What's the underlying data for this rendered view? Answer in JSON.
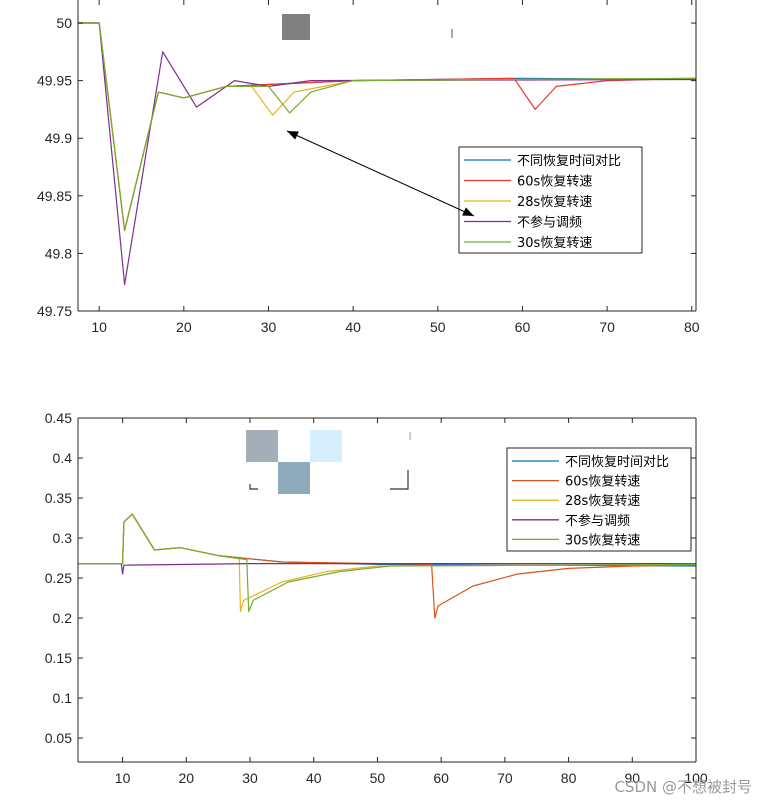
{
  "watermark": "CSDN @不想被封号",
  "chart_data": [
    {
      "type": "line",
      "title": "",
      "xlabel": "",
      "ylabel": "",
      "xlim": [
        7.5,
        80.5
      ],
      "ylim": [
        49.75,
        50.02
      ],
      "xticks": [
        "10",
        "20",
        "30",
        "40",
        "50",
        "60",
        "70",
        "80"
      ],
      "yticks": [
        "49.75",
        "49.8",
        "49.85",
        "49.9",
        "49.95",
        "50"
      ],
      "grid": false,
      "legend_position": "center-right",
      "annotation": "arrow pointing from legend entry 不参与调频 toward curve near x=32",
      "series": [
        {
          "name": "不同恢复时间对比",
          "color": "#0072BD",
          "points": [
            [
              7.5,
              50.0
            ],
            [
              10,
              50.0
            ],
            [
              13,
              49.82
            ],
            [
              17,
              49.94
            ],
            [
              20,
              49.935
            ],
            [
              25,
              49.945
            ],
            [
              40,
              49.95
            ],
            [
              60,
              49.952
            ],
            [
              80.5,
              49.951
            ]
          ]
        },
        {
          "name": "60s恢复转速",
          "color": "#E8392B",
          "points": [
            [
              7.5,
              50.0
            ],
            [
              10,
              50.0
            ],
            [
              13,
              49.82
            ],
            [
              17,
              49.94
            ],
            [
              20,
              49.935
            ],
            [
              25,
              49.945
            ],
            [
              40,
              49.95
            ],
            [
              59,
              49.952
            ],
            [
              61.5,
              49.925
            ],
            [
              64,
              49.945
            ],
            [
              70,
              49.95
            ],
            [
              80.5,
              49.952
            ]
          ]
        },
        {
          "name": "28s恢复转速",
          "color": "#EDB120",
          "points": [
            [
              7.5,
              50.0
            ],
            [
              10,
              50.0
            ],
            [
              13,
              49.82
            ],
            [
              17,
              49.94
            ],
            [
              20,
              49.935
            ],
            [
              25,
              49.945
            ],
            [
              28,
              49.945
            ],
            [
              30.5,
              49.92
            ],
            [
              33,
              49.94
            ],
            [
              40,
              49.95
            ],
            [
              80.5,
              49.952
            ]
          ]
        },
        {
          "name": "不参与调频",
          "color": "#7E2F8E",
          "points": [
            [
              7.5,
              50.0
            ],
            [
              10,
              50.0
            ],
            [
              13,
              49.773
            ],
            [
              17.5,
              49.975
            ],
            [
              21.5,
              49.927
            ],
            [
              26,
              49.95
            ],
            [
              30,
              49.945
            ],
            [
              35,
              49.95
            ],
            [
              80.5,
              49.951
            ]
          ]
        },
        {
          "name": "30s恢复转速",
          "color": "#77AC30",
          "points": [
            [
              7.5,
              50.0
            ],
            [
              10,
              50.0
            ],
            [
              13,
              49.82
            ],
            [
              17,
              49.94
            ],
            [
              20,
              49.935
            ],
            [
              25,
              49.945
            ],
            [
              30,
              49.945
            ],
            [
              32.5,
              49.922
            ],
            [
              35,
              49.94
            ],
            [
              40,
              49.95
            ],
            [
              80.5,
              49.952
            ]
          ]
        }
      ]
    },
    {
      "type": "line",
      "title": "",
      "xlabel": "",
      "ylabel": "",
      "xlim": [
        3,
        100
      ],
      "ylim": [
        0.02,
        0.45
      ],
      "xticks": [
        "10",
        "20",
        "30",
        "40",
        "50",
        "60",
        "70",
        "80",
        "90",
        "100"
      ],
      "yticks": [
        "0.05",
        "0.1",
        "0.15",
        "0.2",
        "0.25",
        "0.3",
        "0.35",
        "0.4",
        "0.45"
      ],
      "grid": false,
      "legend_position": "top-right",
      "series": [
        {
          "name": "不同恢复时间对比",
          "color": "#0072BD",
          "points": [
            [
              3,
              0.268
            ],
            [
              10,
              0.268
            ],
            [
              10.2,
              0.32
            ],
            [
              11.5,
              0.33
            ],
            [
              15,
              0.285
            ],
            [
              19,
              0.288
            ],
            [
              25,
              0.278
            ],
            [
              35,
              0.27
            ],
            [
              50,
              0.267
            ],
            [
              100,
              0.265
            ]
          ]
        },
        {
          "name": "60s恢复转速",
          "color": "#D95319",
          "points": [
            [
              3,
              0.268
            ],
            [
              10,
              0.268
            ],
            [
              10.2,
              0.32
            ],
            [
              11.5,
              0.33
            ],
            [
              15,
              0.285
            ],
            [
              19,
              0.288
            ],
            [
              25,
              0.278
            ],
            [
              35,
              0.27
            ],
            [
              58.5,
              0.267
            ],
            [
              59,
              0.2
            ],
            [
              59.5,
              0.215
            ],
            [
              65,
              0.24
            ],
            [
              72,
              0.255
            ],
            [
              80,
              0.262
            ],
            [
              90,
              0.265
            ],
            [
              100,
              0.266
            ]
          ]
        },
        {
          "name": "28s恢复转速",
          "color": "#EDB120",
          "points": [
            [
              3,
              0.268
            ],
            [
              10,
              0.268
            ],
            [
              10.2,
              0.32
            ],
            [
              11.5,
              0.33
            ],
            [
              15,
              0.285
            ],
            [
              19,
              0.288
            ],
            [
              25,
              0.278
            ],
            [
              28.3,
              0.274
            ],
            [
              28.5,
              0.208
            ],
            [
              29,
              0.222
            ],
            [
              35,
              0.245
            ],
            [
              42,
              0.258
            ],
            [
              50,
              0.265
            ],
            [
              100,
              0.267
            ]
          ]
        },
        {
          "name": "不参与调频",
          "color": "#7E2F8E",
          "points": [
            [
              3,
              0.268
            ],
            [
              9.8,
              0.268
            ],
            [
              10,
              0.255
            ],
            [
              10.2,
              0.266
            ],
            [
              30,
              0.268
            ],
            [
              100,
              0.268
            ]
          ]
        },
        {
          "name": "30s恢复转速",
          "color": "#77AC30",
          "points": [
            [
              3,
              0.268
            ],
            [
              10,
              0.268
            ],
            [
              10.2,
              0.32
            ],
            [
              11.5,
              0.33
            ],
            [
              15,
              0.285
            ],
            [
              19,
              0.288
            ],
            [
              25,
              0.278
            ],
            [
              29.5,
              0.273
            ],
            [
              29.8,
              0.208
            ],
            [
              30.5,
              0.222
            ],
            [
              36,
              0.245
            ],
            [
              44,
              0.258
            ],
            [
              52,
              0.265
            ],
            [
              100,
              0.267
            ]
          ]
        }
      ]
    }
  ]
}
